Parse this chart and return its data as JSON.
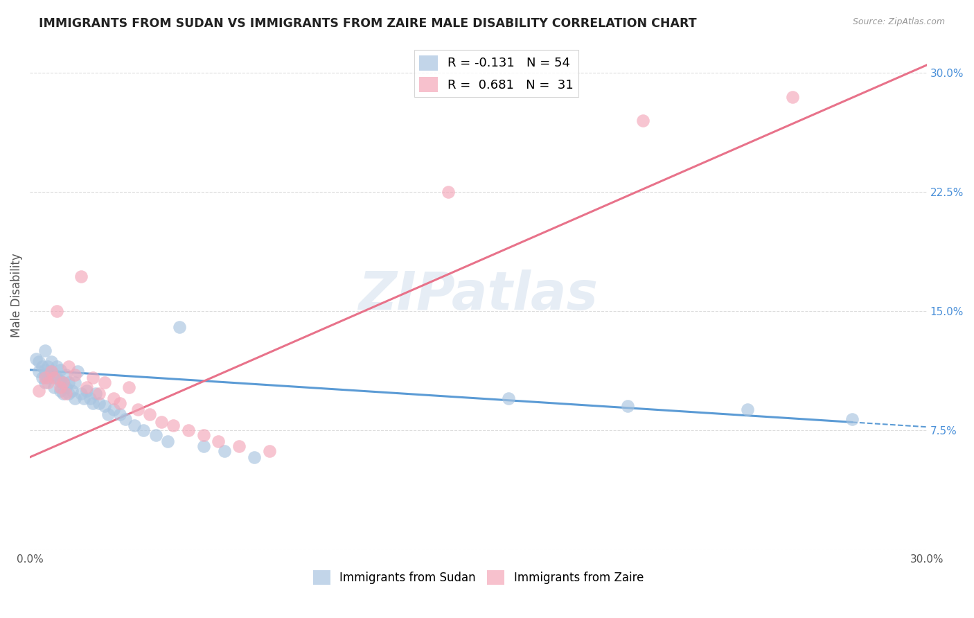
{
  "title": "IMMIGRANTS FROM SUDAN VS IMMIGRANTS FROM ZAIRE MALE DISABILITY CORRELATION CHART",
  "source": "Source: ZipAtlas.com",
  "ylabel": "Male Disability",
  "xlim": [
    0.0,
    0.3
  ],
  "ylim": [
    0.0,
    0.32
  ],
  "sudan_color": "#a8c4e0",
  "zaire_color": "#f4a7b9",
  "sudan_R": -0.131,
  "sudan_N": 54,
  "zaire_R": 0.681,
  "zaire_N": 31,
  "grid_color": "#dddddd",
  "background_color": "#ffffff",
  "legend_labels": [
    "Immigrants from Sudan",
    "Immigrants from Zaire"
  ],
  "sudan_points_x": [
    0.002,
    0.003,
    0.003,
    0.004,
    0.004,
    0.005,
    0.005,
    0.005,
    0.005,
    0.006,
    0.006,
    0.007,
    0.007,
    0.008,
    0.008,
    0.009,
    0.009,
    0.01,
    0.01,
    0.01,
    0.011,
    0.011,
    0.012,
    0.012,
    0.013,
    0.013,
    0.014,
    0.015,
    0.015,
    0.016,
    0.017,
    0.018,
    0.019,
    0.02,
    0.021,
    0.022,
    0.023,
    0.025,
    0.026,
    0.028,
    0.03,
    0.032,
    0.035,
    0.038,
    0.042,
    0.046,
    0.05,
    0.058,
    0.065,
    0.075,
    0.16,
    0.2,
    0.24,
    0.275
  ],
  "sudan_points_y": [
    0.12,
    0.112,
    0.118,
    0.108,
    0.115,
    0.105,
    0.11,
    0.113,
    0.125,
    0.108,
    0.115,
    0.112,
    0.118,
    0.102,
    0.11,
    0.108,
    0.115,
    0.1,
    0.106,
    0.113,
    0.098,
    0.105,
    0.102,
    0.11,
    0.098,
    0.105,
    0.1,
    0.095,
    0.105,
    0.112,
    0.098,
    0.095,
    0.1,
    0.095,
    0.092,
    0.098,
    0.092,
    0.09,
    0.085,
    0.088,
    0.085,
    0.082,
    0.078,
    0.075,
    0.072,
    0.068,
    0.14,
    0.065,
    0.062,
    0.058,
    0.095,
    0.09,
    0.088,
    0.082
  ],
  "zaire_points_x": [
    0.003,
    0.005,
    0.006,
    0.007,
    0.008,
    0.009,
    0.01,
    0.011,
    0.012,
    0.013,
    0.015,
    0.017,
    0.019,
    0.021,
    0.023,
    0.025,
    0.028,
    0.03,
    0.033,
    0.036,
    0.04,
    0.044,
    0.048,
    0.053,
    0.058,
    0.063,
    0.07,
    0.08,
    0.14,
    0.205,
    0.255
  ],
  "zaire_points_y": [
    0.1,
    0.108,
    0.105,
    0.112,
    0.108,
    0.15,
    0.102,
    0.105,
    0.098,
    0.115,
    0.11,
    0.172,
    0.102,
    0.108,
    0.098,
    0.105,
    0.095,
    0.092,
    0.102,
    0.088,
    0.085,
    0.08,
    0.078,
    0.075,
    0.072,
    0.068,
    0.065,
    0.062,
    0.225,
    0.27,
    0.285
  ],
  "sudan_line_start_x": 0.0,
  "sudan_line_end_solid_x": 0.275,
  "sudan_line_end_x": 0.3,
  "sudan_line_y_at_0": 0.113,
  "sudan_line_y_at_030": 0.077,
  "zaire_line_start_x": 0.0,
  "zaire_line_end_x": 0.3,
  "zaire_line_y_at_0": 0.058,
  "zaire_line_y_at_030": 0.305
}
